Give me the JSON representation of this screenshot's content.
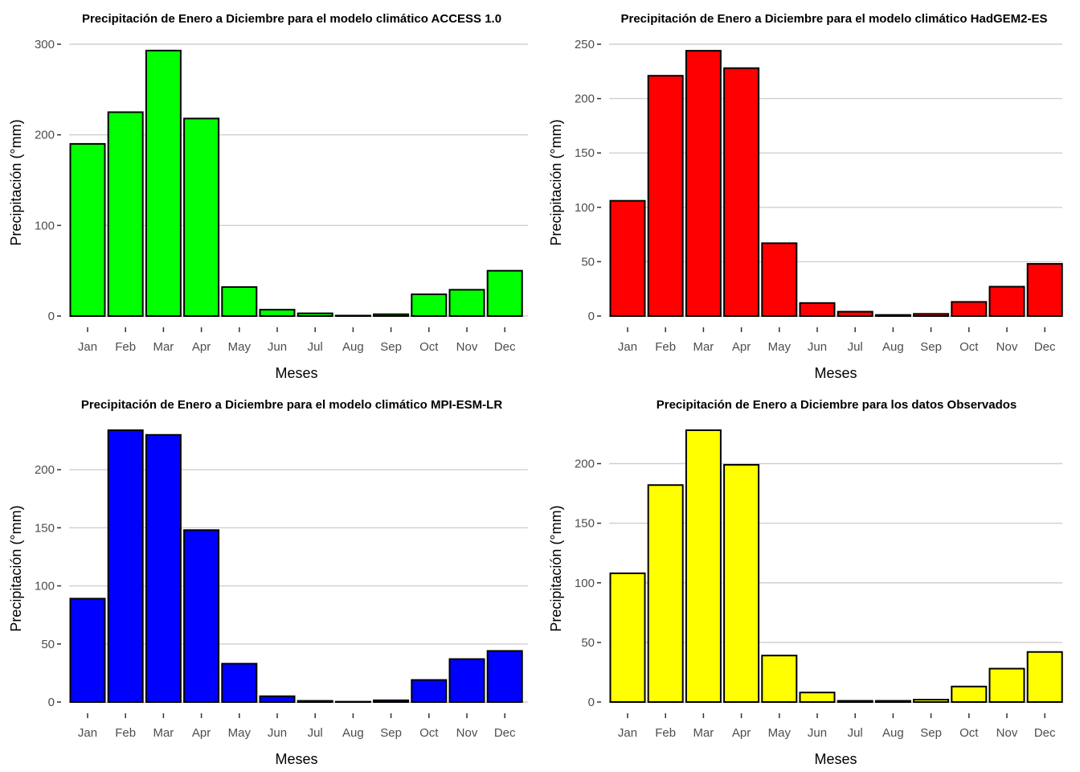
{
  "chart_data": [
    {
      "type": "bar",
      "title": "Precipitación de Enero a Diciembre para el modelo climático ACCESS 1.0",
      "xlabel": "Meses",
      "ylabel": "Precipitación (°mm)",
      "categories": [
        "Jan",
        "Feb",
        "Mar",
        "Apr",
        "May",
        "Jun",
        "Jul",
        "Aug",
        "Sep",
        "Oct",
        "Nov",
        "Dec"
      ],
      "values": [
        190,
        225,
        293,
        218,
        32,
        7,
        3,
        0.5,
        2,
        24,
        29,
        50
      ],
      "ylim": [
        0,
        300
      ],
      "yticks": [
        0,
        100,
        200,
        300
      ],
      "grid": true,
      "color": "#00ff00"
    },
    {
      "type": "bar",
      "title": "Precipitación de Enero a Diciembre para el modelo climático HadGEM2-ES",
      "xlabel": "Meses",
      "ylabel": "Precipitación (°mm)",
      "categories": [
        "Jan",
        "Feb",
        "Mar",
        "Apr",
        "May",
        "Jun",
        "Jul",
        "Aug",
        "Sep",
        "Oct",
        "Nov",
        "Dec"
      ],
      "values": [
        106,
        221,
        244,
        228,
        67,
        12,
        4,
        1,
        2,
        13,
        27,
        48
      ],
      "ylim": [
        0,
        250
      ],
      "yticks": [
        0,
        50,
        100,
        150,
        200,
        250
      ],
      "grid": true,
      "color": "#ff0000"
    },
    {
      "type": "bar",
      "title": "Precipitación de Enero a Diciembre para el modelo climático MPI-ESM-LR",
      "xlabel": "Meses",
      "ylabel": "Precipitación (°mm)",
      "categories": [
        "Jan",
        "Feb",
        "Mar",
        "Apr",
        "May",
        "Jun",
        "Jul",
        "Aug",
        "Sep",
        "Oct",
        "Nov",
        "Dec"
      ],
      "values": [
        89,
        234,
        230,
        148,
        33,
        5,
        1,
        0.3,
        1.5,
        19,
        37,
        44
      ],
      "ylim": [
        0,
        234
      ],
      "yticks": [
        0,
        50,
        100,
        150,
        200
      ],
      "grid": true,
      "color": "#0000ff"
    },
    {
      "type": "bar",
      "title": "Precipitación de Enero a Diciembre para los datos Observados",
      "xlabel": "Meses",
      "ylabel": "Precipitación (°mm)",
      "categories": [
        "Jan",
        "Feb",
        "Mar",
        "Apr",
        "May",
        "Jun",
        "Jul",
        "Aug",
        "Sep",
        "Oct",
        "Nov",
        "Dec"
      ],
      "values": [
        108,
        182,
        228,
        199,
        39,
        8,
        1,
        1,
        2,
        13,
        28,
        42
      ],
      "ylim": [
        0,
        228
      ],
      "yticks": [
        0,
        50,
        100,
        150,
        200
      ],
      "grid": true,
      "color": "#ffff00"
    }
  ]
}
